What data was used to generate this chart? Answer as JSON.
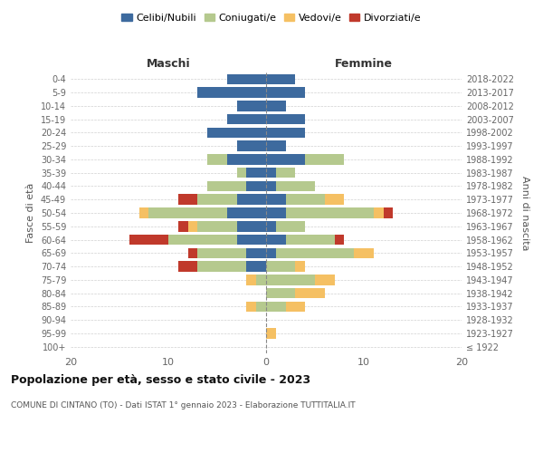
{
  "age_groups": [
    "100+",
    "95-99",
    "90-94",
    "85-89",
    "80-84",
    "75-79",
    "70-74",
    "65-69",
    "60-64",
    "55-59",
    "50-54",
    "45-49",
    "40-44",
    "35-39",
    "30-34",
    "25-29",
    "20-24",
    "15-19",
    "10-14",
    "5-9",
    "0-4"
  ],
  "birth_years": [
    "≤ 1922",
    "1923-1927",
    "1928-1932",
    "1933-1937",
    "1938-1942",
    "1943-1947",
    "1948-1952",
    "1953-1957",
    "1958-1962",
    "1963-1967",
    "1968-1972",
    "1973-1977",
    "1978-1982",
    "1983-1987",
    "1988-1992",
    "1993-1997",
    "1998-2002",
    "2003-2007",
    "2008-2012",
    "2013-2017",
    "2018-2022"
  ],
  "maschi": {
    "celibi": [
      0,
      0,
      0,
      0,
      0,
      0,
      2,
      2,
      3,
      3,
      4,
      3,
      2,
      2,
      4,
      3,
      6,
      4,
      3,
      7,
      4
    ],
    "coniugati": [
      0,
      0,
      0,
      1,
      0,
      1,
      5,
      5,
      7,
      4,
      8,
      4,
      4,
      1,
      2,
      0,
      0,
      0,
      0,
      0,
      0
    ],
    "vedovi": [
      0,
      0,
      0,
      1,
      0,
      1,
      0,
      0,
      0,
      1,
      1,
      0,
      0,
      0,
      0,
      0,
      0,
      0,
      0,
      0,
      0
    ],
    "divorziati": [
      0,
      0,
      0,
      0,
      0,
      0,
      2,
      1,
      4,
      1,
      0,
      2,
      0,
      0,
      0,
      0,
      0,
      0,
      0,
      0,
      0
    ]
  },
  "femmine": {
    "nubili": [
      0,
      0,
      0,
      0,
      0,
      0,
      0,
      1,
      2,
      1,
      2,
      2,
      1,
      1,
      4,
      2,
      4,
      4,
      2,
      4,
      3
    ],
    "coniugate": [
      0,
      0,
      0,
      2,
      3,
      5,
      3,
      8,
      5,
      3,
      9,
      4,
      4,
      2,
      4,
      0,
      0,
      0,
      0,
      0,
      0
    ],
    "vedove": [
      0,
      1,
      0,
      2,
      3,
      2,
      1,
      2,
      0,
      0,
      1,
      2,
      0,
      0,
      0,
      0,
      0,
      0,
      0,
      0,
      0
    ],
    "divorziate": [
      0,
      0,
      0,
      0,
      0,
      0,
      0,
      0,
      1,
      0,
      1,
      0,
      0,
      0,
      0,
      0,
      0,
      0,
      0,
      0,
      0
    ]
  },
  "colors": {
    "celibi": "#3d6a9e",
    "coniugati": "#b5c98e",
    "vedovi": "#f5c063",
    "divorziati": "#c0392b"
  },
  "xlim": 20,
  "title": "Popolazione per età, sesso e stato civile - 2023",
  "subtitle": "COMUNE DI CINTANO (TO) - Dati ISTAT 1° gennaio 2023 - Elaborazione TUTTITALIA.IT",
  "xlabel_left": "Maschi",
  "xlabel_right": "Femmine",
  "ylabel_left": "Fasce di età",
  "ylabel_right": "Anni di nascita",
  "legend_labels": [
    "Celibi/Nubili",
    "Coniugati/e",
    "Vedovi/e",
    "Divorziati/e"
  ],
  "background_color": "#ffffff"
}
